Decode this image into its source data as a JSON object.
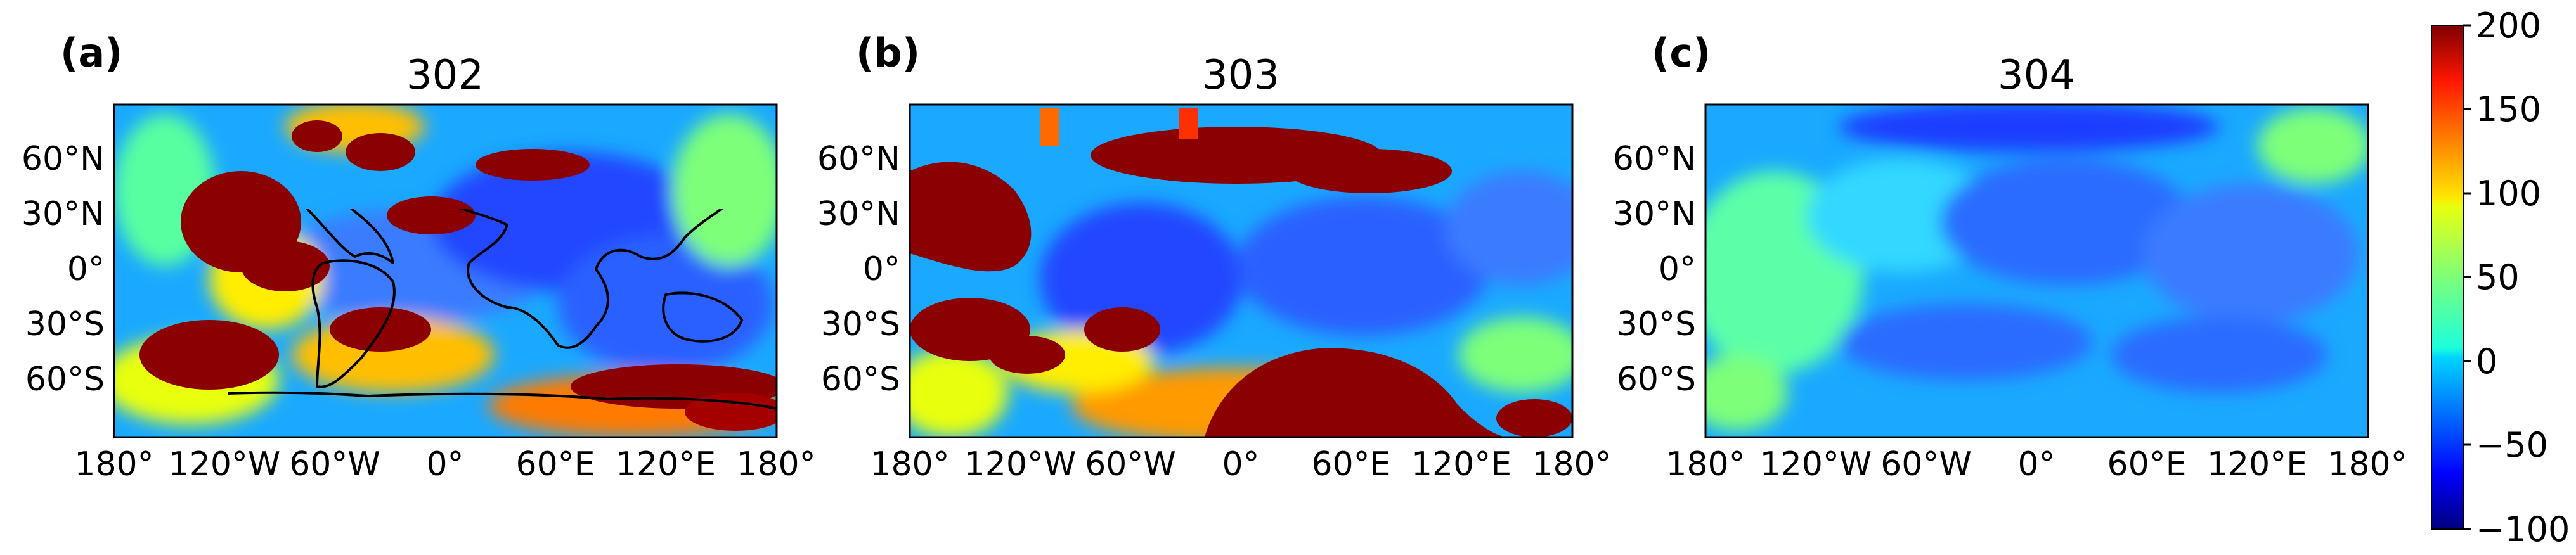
{
  "figure": {
    "colorbar": {
      "ticks": [
        "200",
        "150",
        "100",
        "50",
        "0",
        "−50",
        "−100"
      ],
      "min": -100,
      "max": 200,
      "colormap": "jet"
    },
    "panels": [
      {
        "label": "(a)",
        "title": "302"
      },
      {
        "label": "(b)",
        "title": "303"
      },
      {
        "label": "(c)",
        "title": "304"
      }
    ],
    "lat_ticks": [
      "60°N",
      "30°N",
      "0°",
      "30°S",
      "60°S"
    ],
    "lon_ticks": [
      "180°",
      "120°W",
      "60°W",
      "0°",
      "60°E",
      "120°E",
      "180°"
    ]
  }
}
